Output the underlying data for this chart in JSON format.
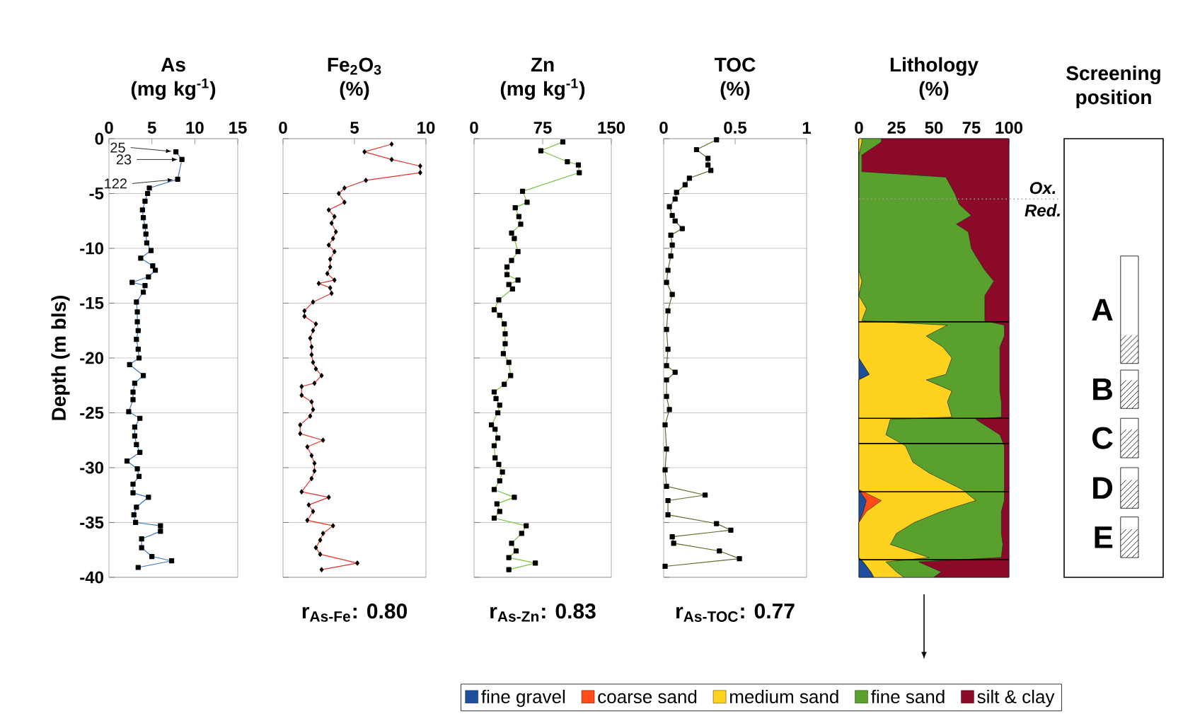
{
  "chart_data": [
    {
      "type": "line",
      "title": "As",
      "subtitle": "(mg kg$^{-1}$)",
      "ylabel": "Depth (m bls)",
      "xlim": [
        0,
        15
      ],
      "xticks": [
        0,
        5,
        10,
        15
      ],
      "ylim": [
        -40,
        0
      ],
      "yticks": [
        -40,
        -35,
        -30,
        -25,
        -20,
        -15,
        -10,
        -5,
        0
      ],
      "grid": "y",
      "marker": "square",
      "series": [
        {
          "color": "#3a74c0",
          "x": [
            7.8,
            8.5,
            8.0,
            4.7,
            4.5,
            4.2,
            3.9,
            4.0,
            4.2,
            4.3,
            4.4,
            4.9,
            3.7,
            5.1,
            5.4,
            4.6,
            2.7,
            4.2,
            4.0,
            3.2,
            3.3,
            3.3,
            3.4,
            3.2,
            3.4,
            3.5,
            2.4,
            4.0,
            3.0,
            2.8,
            2.8,
            2.3,
            3.6,
            3.0,
            3.0,
            3.2,
            3.6,
            2.1,
            3.3,
            3.5,
            2.8,
            2.8,
            4.6,
            3.2,
            2.9,
            3.1,
            6.0,
            6.0,
            3.8,
            3.8,
            5.0,
            7.3,
            3.4
          ],
          "values": [
            -1.2,
            -1.9,
            -3.7,
            -4.5,
            -5.0,
            -5.7,
            -6.5,
            -7.2,
            -8.0,
            -8.7,
            -9.5,
            -10.2,
            -10.9,
            -11.6,
            -12.0,
            -12.6,
            -13.1,
            -13.4,
            -14.0,
            -14.9,
            -15.8,
            -16.7,
            -17.5,
            -18.3,
            -19.2,
            -20.0,
            -20.6,
            -21.6,
            -22.3,
            -23.1,
            -23.8,
            -24.9,
            -25.5,
            -26.3,
            -27.1,
            -27.9,
            -28.6,
            -29.4,
            -30.1,
            -30.8,
            -31.5,
            -32.3,
            -32.7,
            -33.6,
            -34.3,
            -35.0,
            -35.3,
            -35.8,
            -36.5,
            -37.3,
            -38.1,
            -38.5,
            -39.1
          ]
        }
      ],
      "annotations": [
        {
          "text": "25",
          "x": 7.8,
          "y": -1.2
        },
        {
          "text": "23",
          "x": 8.5,
          "y": -1.9
        },
        {
          "text": "122",
          "x": 8.0,
          "y": -3.7
        }
      ]
    },
    {
      "type": "line",
      "title": "Fe$_{2}$O$_{3}$",
      "subtitle": "(%)",
      "xlim": [
        0,
        10
      ],
      "xticks": [
        0,
        5,
        10
      ],
      "ylim": [
        -40,
        0
      ],
      "yticks": [
        -40,
        -35,
        -30,
        -25,
        -20,
        -15,
        -10,
        -5,
        0
      ],
      "tick_labels": "x",
      "grid": "y",
      "marker": "diamond",
      "series": [
        {
          "color": "#e8322a",
          "x": [
            7.6,
            5.7,
            7.6,
            9.6,
            9.6,
            5.8,
            4.3,
            3.9,
            4.3,
            3.2,
            3.6,
            3.4,
            3.7,
            3.5,
            3.2,
            3.6,
            3.3,
            3.3,
            3.1,
            3.6,
            2.5,
            3.3,
            3.4,
            2.1,
            1.5,
            1.5,
            2.3,
            2.1,
            1.9,
            2.0,
            2.0,
            2.1,
            2.3,
            2.7,
            2.2,
            1.3,
            1.3,
            2.0,
            2.1,
            1.9,
            1.2,
            1.2,
            2.8,
            1.7,
            2.0,
            2.2,
            2.2,
            2.0,
            1.3,
            3.2,
            1.8,
            2.1,
            1.7,
            3.5,
            2.8,
            2.6,
            2.3,
            2.6,
            5.2,
            2.7
          ],
          "values": [
            -0.5,
            -1.2,
            -1.9,
            -2.5,
            -3.1,
            -3.8,
            -4.5,
            -5.0,
            -5.8,
            -6.5,
            -7.1,
            -7.7,
            -8.5,
            -9.1,
            -9.7,
            -10.3,
            -11.0,
            -11.7,
            -12.3,
            -12.9,
            -13.2,
            -13.6,
            -14.1,
            -14.9,
            -15.7,
            -16.2,
            -16.9,
            -17.5,
            -18.2,
            -19.0,
            -19.7,
            -20.4,
            -21.0,
            -21.6,
            -22.3,
            -22.6,
            -23.4,
            -24.0,
            -24.7,
            -25.3,
            -26.1,
            -26.9,
            -27.5,
            -28.1,
            -28.9,
            -29.6,
            -30.3,
            -31.0,
            -32.2,
            -32.7,
            -33.4,
            -34.0,
            -34.8,
            -35.3,
            -36.0,
            -36.6,
            -37.3,
            -37.9,
            -38.7,
            -39.3
          ]
        }
      ],
      "annotations": [
        "r$_{As-Fe}$: 0.80"
      ]
    },
    {
      "type": "line",
      "title": "Zn",
      "subtitle": "(mg kg$^{-1}$)",
      "xlim": [
        0,
        150
      ],
      "xticks": [
        0,
        75,
        150
      ],
      "ylim": [
        -40,
        0
      ],
      "yticks": [
        -40,
        -35,
        -30,
        -25,
        -20,
        -15,
        -10,
        -5,
        0
      ],
      "tick_labels": "x",
      "grid": "y",
      "marker": "square",
      "series": [
        {
          "color": "#7ac143",
          "x": [
            97,
            73,
            102,
            114,
            115,
            53,
            58,
            45,
            49,
            51,
            41,
            44,
            48,
            41,
            36,
            36,
            48,
            38,
            42,
            27,
            22,
            28,
            33,
            34,
            34,
            32,
            38,
            40,
            33,
            22,
            24,
            28,
            26,
            19,
            23,
            26,
            22,
            23,
            27,
            31,
            28,
            22,
            44,
            25,
            28,
            22,
            57,
            52,
            41,
            46,
            38,
            67,
            38
          ],
          "values": [
            -0.3,
            -1.1,
            -2.1,
            -2.4,
            -3.1,
            -4.8,
            -5.8,
            -6.3,
            -7.1,
            -7.8,
            -8.6,
            -9.1,
            -10.3,
            -11.1,
            -11.7,
            -12.4,
            -12.9,
            -13.3,
            -13.7,
            -14.7,
            -15.6,
            -16.1,
            -16.9,
            -17.8,
            -18.7,
            -19.6,
            -20.4,
            -21.6,
            -22.4,
            -23.1,
            -23.7,
            -24.3,
            -25.0,
            -26.1,
            -26.5,
            -27.3,
            -28.0,
            -29.1,
            -29.7,
            -30.4,
            -31.2,
            -32.0,
            -32.7,
            -33.3,
            -34.0,
            -34.6,
            -35.3,
            -36.0,
            -36.9,
            -37.6,
            -38.2,
            -38.7,
            -39.3
          ]
        }
      ],
      "annotations": [
        "r$_{As-Zn}$: 0.83"
      ]
    },
    {
      "type": "line",
      "title": "TOC",
      "subtitle": "(%)",
      "xlim": [
        0,
        1
      ],
      "xticks": [
        0,
        0.5,
        1
      ],
      "ylim": [
        -40,
        0
      ],
      "yticks": [
        -40,
        -35,
        -30,
        -25,
        -20,
        -15,
        -10,
        -5,
        0
      ],
      "tick_labels": "x",
      "grid": "y",
      "marker": "square",
      "series": [
        {
          "color": "#5d6b2c",
          "x": [
            0.37,
            0.23,
            0.31,
            0.31,
            0.33,
            0.18,
            0.15,
            0.09,
            0.08,
            0.04,
            0.06,
            0.08,
            0.13,
            0.05,
            0.06,
            0.05,
            0.03,
            0.02,
            0.06,
            0.03,
            0.02,
            0.03,
            0.02,
            0.08,
            0.02,
            0.02,
            0.04,
            0.01,
            0.02,
            0.01,
            0.02,
            0.29,
            0.03,
            0.03,
            0.37,
            0.47,
            0.06,
            0.07,
            0.39,
            0.53,
            0.01
          ],
          "values": [
            -0.1,
            -1.0,
            -1.8,
            -2.4,
            -2.9,
            -3.6,
            -4.2,
            -4.9,
            -5.5,
            -6.2,
            -7.0,
            -7.5,
            -8.2,
            -8.8,
            -9.7,
            -10.7,
            -12.0,
            -13.1,
            -14.2,
            -15.7,
            -17.4,
            -19.2,
            -20.7,
            -21.3,
            -22.0,
            -23.5,
            -24.7,
            -26.1,
            -28.3,
            -30.2,
            -31.7,
            -32.5,
            -33.0,
            -34.3,
            -35.1,
            -35.7,
            -36.3,
            -36.9,
            -37.6,
            -38.3,
            -39.0
          ]
        }
      ],
      "annotations": [
        "r$_{As-TOC}$: 0.77"
      ]
    },
    {
      "type": "area",
      "stacked": true,
      "orientation": "horizontal",
      "title": "Lithology",
      "subtitle": "(%)",
      "xlim": [
        0,
        100
      ],
      "xticks": [
        0,
        25,
        50,
        75,
        100
      ],
      "ylim": [
        -40,
        0
      ],
      "tick_labels": "x",
      "legend": "bottom",
      "x": [
        0,
        -0.3,
        -1.5,
        -3.0,
        -3.5,
        -5,
        -6,
        -7,
        -7.8,
        -8.5,
        -10,
        -10.7,
        -12,
        -13,
        -14.3,
        -15.5,
        -16.6,
        -17,
        -18,
        -19,
        -20,
        -21.5,
        -22,
        -23,
        -24,
        -25.4,
        -25.6,
        -27,
        -28,
        -29.5,
        -30.5,
        -32,
        -33,
        -34,
        -35,
        -36,
        -37,
        -38.2,
        -38.6,
        -39.5,
        -40
      ],
      "series": [
        {
          "name": "fine gravel",
          "color": "#1f4e9c",
          "values": [
            0,
            0,
            0,
            0,
            0,
            0,
            0,
            0,
            0,
            0,
            0,
            0,
            0,
            0,
            0,
            0,
            0,
            0,
            0,
            0,
            0,
            7,
            0,
            0,
            0,
            0,
            0,
            0,
            0,
            0,
            0,
            0,
            5,
            3,
            0,
            0,
            0,
            0,
            3,
            8,
            10
          ]
        },
        {
          "name": "coarse sand",
          "color": "#ff4a1a",
          "values": [
            0,
            0,
            0,
            0,
            0,
            0,
            0,
            0,
            0,
            0,
            0,
            0,
            0,
            0,
            0,
            0,
            0,
            0,
            0,
            0,
            0,
            0,
            0,
            0,
            0,
            0,
            0,
            0,
            0,
            0,
            0,
            0,
            10,
            2,
            0,
            0,
            0,
            0,
            0,
            0,
            0
          ]
        },
        {
          "name": "medium sand",
          "color": "#ffd21f",
          "values": [
            2,
            2,
            0,
            0,
            0,
            0,
            0,
            0,
            0,
            0,
            0,
            0,
            0,
            2,
            0,
            5,
            2,
            59,
            45,
            56,
            62,
            51,
            45,
            62,
            59,
            62,
            21,
            18,
            31,
            36,
            47,
            69,
            63,
            50,
            37,
            25,
            21,
            47,
            15,
            17,
            20
          ]
        },
        {
          "name": "fine sand",
          "color": "#5aa02c",
          "values": [
            13,
            13,
            2,
            2,
            58,
            64,
            67,
            75,
            65,
            73,
            75,
            78,
            84,
            88,
            84,
            79,
            82,
            38,
            52,
            38,
            32,
            36,
            49,
            32,
            36,
            33,
            57,
            76,
            66,
            61,
            50,
            28,
            19,
            40,
            58,
            70,
            75,
            48,
            22,
            30,
            20
          ]
        },
        {
          "name": "silt & clay",
          "color": "#8b0a2a",
          "values": [
            85,
            85,
            98,
            98,
            42,
            36,
            33,
            25,
            35,
            27,
            25,
            22,
            16,
            10,
            16,
            16,
            16,
            3,
            3,
            6,
            6,
            6,
            6,
            6,
            5,
            5,
            22,
            6,
            3,
            3,
            3,
            3,
            3,
            5,
            5,
            5,
            4,
            5,
            60,
            45,
            50
          ]
        }
      ],
      "ref_lines": [
        {
          "axis": "y",
          "value": -5.5,
          "label": "Ox.",
          "color": "#a0a0a0",
          "line_style": "dotted"
        },
        {
          "axis": "y",
          "value": -16.7,
          "color": "#000000",
          "line_style": "solid"
        },
        {
          "axis": "y",
          "value": -25.5,
          "color": "#000000",
          "line_style": "solid"
        },
        {
          "axis": "y",
          "value": -27.8,
          "color": "#000000",
          "line_style": "solid"
        },
        {
          "axis": "y",
          "value": -32.2,
          "color": "#000000",
          "line_style": "solid"
        },
        {
          "axis": "y",
          "value": -38.4,
          "color": "#000000",
          "line_style": "solid"
        }
      ],
      "annotations": [
        "Red."
      ]
    },
    {
      "type": "other",
      "title": "Screening position",
      "annotations": [
        "A",
        "B",
        "C",
        "D",
        "E"
      ]
    }
  ]
}
